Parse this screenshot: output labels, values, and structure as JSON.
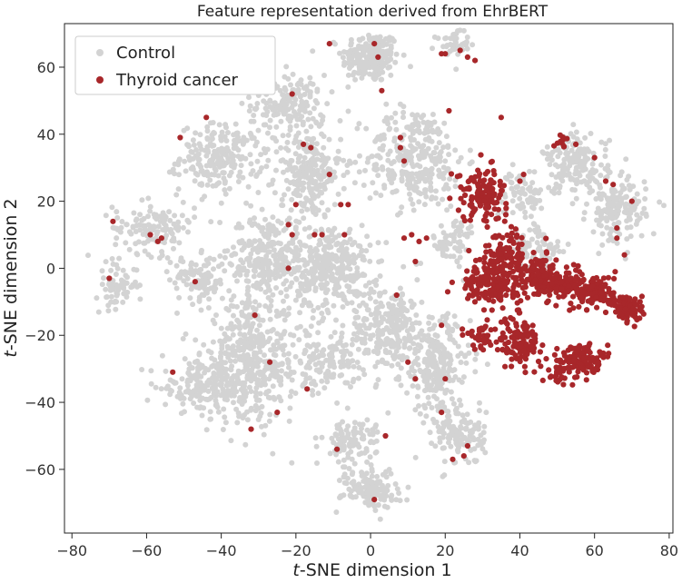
{
  "chart_data": {
    "type": "scatter",
    "title": "Feature representation derived from EhrBERT",
    "xlabel_italic": "t",
    "xlabel_rest": "-SNE dimension 1",
    "ylabel_italic": "t",
    "ylabel_rest": "-SNE dimension 2",
    "xlim": [
      -82,
      81
    ],
    "ylim": [
      -79,
      73
    ],
    "xticks": [
      -80,
      -60,
      -40,
      -20,
      0,
      20,
      40,
      60,
      80
    ],
    "yticks": [
      -60,
      -40,
      -20,
      0,
      20,
      40,
      60
    ],
    "legend_position": "top-left",
    "series": [
      {
        "name": "Control",
        "color": "#d3d3d3",
        "clusters": [
          {
            "cx": 0,
            "cy": 63,
            "rx": 7,
            "ry": 7,
            "n": 220
          },
          {
            "cx": 22,
            "cy": 67,
            "rx": 4,
            "ry": 3,
            "n": 40
          },
          {
            "cx": -22,
            "cy": 49,
            "rx": 9,
            "ry": 8,
            "n": 160
          },
          {
            "cx": -40,
            "cy": 33,
            "rx": 10,
            "ry": 9,
            "n": 220
          },
          {
            "cx": -17,
            "cy": 28,
            "rx": 8,
            "ry": 12,
            "n": 230
          },
          {
            "cx": 12,
            "cy": 33,
            "rx": 12,
            "ry": 14,
            "n": 300
          },
          {
            "cx": -58,
            "cy": 12,
            "rx": 10,
            "ry": 7,
            "n": 130
          },
          {
            "cx": -68,
            "cy": -5,
            "rx": 5,
            "ry": 6,
            "n": 70
          },
          {
            "cx": -46,
            "cy": -3,
            "rx": 7,
            "ry": 6,
            "n": 100
          },
          {
            "cx": -27,
            "cy": 3,
            "rx": 10,
            "ry": 12,
            "n": 300
          },
          {
            "cx": -10,
            "cy": 0,
            "rx": 9,
            "ry": 12,
            "n": 300
          },
          {
            "cx": 5,
            "cy": -18,
            "rx": 10,
            "ry": 12,
            "n": 280
          },
          {
            "cx": 18,
            "cy": -30,
            "rx": 8,
            "ry": 14,
            "n": 220
          },
          {
            "cx": -32,
            "cy": -28,
            "rx": 12,
            "ry": 16,
            "n": 450
          },
          {
            "cx": -45,
            "cy": -35,
            "rx": 10,
            "ry": 7,
            "n": 160
          },
          {
            "cx": -12,
            "cy": -28,
            "rx": 7,
            "ry": 8,
            "n": 120
          },
          {
            "cx": -5,
            "cy": -52,
            "rx": 7,
            "ry": 7,
            "n": 110
          },
          {
            "cx": 0,
            "cy": -66,
            "rx": 7,
            "ry": 5,
            "n": 130
          },
          {
            "cx": 24,
            "cy": -50,
            "rx": 6,
            "ry": 8,
            "n": 120
          },
          {
            "cx": 55,
            "cy": 31,
            "rx": 8,
            "ry": 8,
            "n": 170
          },
          {
            "cx": 66,
            "cy": 17,
            "rx": 7,
            "ry": 9,
            "n": 150
          },
          {
            "cx": 40,
            "cy": 22,
            "rx": 6,
            "ry": 6,
            "n": 70
          },
          {
            "cx": 45,
            "cy": 5,
            "rx": 6,
            "ry": 8,
            "n": 80
          },
          {
            "cx": 22,
            "cy": 8,
            "rx": 6,
            "ry": 6,
            "n": 60
          }
        ]
      },
      {
        "name": "Thyroid cancer",
        "color": "#a8272a",
        "clusters": [
          {
            "cx": 30,
            "cy": 22,
            "rx": 6,
            "ry": 7,
            "n": 120
          },
          {
            "cx": 36,
            "cy": 4,
            "rx": 6,
            "ry": 7,
            "n": 110
          },
          {
            "cx": 32,
            "cy": -5,
            "rx": 7,
            "ry": 5,
            "n": 150
          },
          {
            "cx": 45,
            "cy": -2,
            "rx": 5,
            "ry": 6,
            "n": 90
          },
          {
            "cx": 50,
            "cy": -5,
            "rx": 6,
            "ry": 4,
            "n": 100
          },
          {
            "cx": 60,
            "cy": -7,
            "rx": 5,
            "ry": 5,
            "n": 110
          },
          {
            "cx": 69,
            "cy": -12,
            "rx": 4,
            "ry": 4,
            "n": 90
          },
          {
            "cx": 40,
            "cy": -22,
            "rx": 5,
            "ry": 7,
            "n": 110
          },
          {
            "cx": 30,
            "cy": -20,
            "rx": 4,
            "ry": 4,
            "n": 40
          },
          {
            "cx": 56,
            "cy": -27,
            "rx": 5,
            "ry": 4,
            "n": 110
          },
          {
            "cx": 50,
            "cy": -31,
            "rx": 4,
            "ry": 3,
            "n": 30
          },
          {
            "cx": 51,
            "cy": 38,
            "rx": 2,
            "ry": 2,
            "n": 12
          }
        ],
        "points": [
          [
            -69,
            14
          ],
          [
            -70,
            -3
          ],
          [
            -59,
            10
          ],
          [
            -57,
            8
          ],
          [
            -56,
            9
          ],
          [
            -51,
            39
          ],
          [
            -47,
            -4
          ],
          [
            -44,
            45
          ],
          [
            -53,
            -31
          ],
          [
            -31,
            -14
          ],
          [
            -32,
            -48
          ],
          [
            -27,
            -28
          ],
          [
            -25,
            -43
          ],
          [
            -17,
            -36
          ],
          [
            -21,
            52
          ],
          [
            -18,
            37
          ],
          [
            -16,
            36
          ],
          [
            -11,
            28
          ],
          [
            -11,
            67
          ],
          [
            -20,
            19
          ],
          [
            -21,
            10
          ],
          [
            -22,
            0
          ],
          [
            -22,
            13
          ],
          [
            -15,
            10
          ],
          [
            -13,
            10
          ],
          [
            -8,
            19
          ],
          [
            -6,
            19
          ],
          [
            -7,
            10
          ],
          [
            -9,
            -54
          ],
          [
            1,
            67
          ],
          [
            2,
            63
          ],
          [
            3,
            53
          ],
          [
            8,
            39
          ],
          [
            8,
            36
          ],
          [
            9,
            32
          ],
          [
            9,
            9
          ],
          [
            11,
            10
          ],
          [
            13,
            8
          ],
          [
            12,
            2
          ],
          [
            15,
            9
          ],
          [
            21,
            47
          ],
          [
            19,
            64
          ],
          [
            20,
            64
          ],
          [
            24,
            65
          ],
          [
            26,
            63
          ],
          [
            28,
            62
          ],
          [
            22,
            -57
          ],
          [
            25,
            -56
          ],
          [
            26,
            -53
          ],
          [
            19,
            -43
          ],
          [
            20,
            -33
          ],
          [
            10,
            -28
          ],
          [
            12,
            -33
          ],
          [
            7,
            -8
          ],
          [
            4,
            -50
          ],
          [
            1,
            -69
          ],
          [
            19,
            -17
          ],
          [
            35,
            45
          ],
          [
            40,
            26
          ],
          [
            41,
            28
          ],
          [
            55,
            37
          ],
          [
            60,
            33
          ],
          [
            63,
            26
          ],
          [
            65,
            25
          ],
          [
            66,
            12
          ],
          [
            66,
            9
          ],
          [
            70,
            20
          ],
          [
            68,
            4
          ]
        ]
      }
    ]
  }
}
